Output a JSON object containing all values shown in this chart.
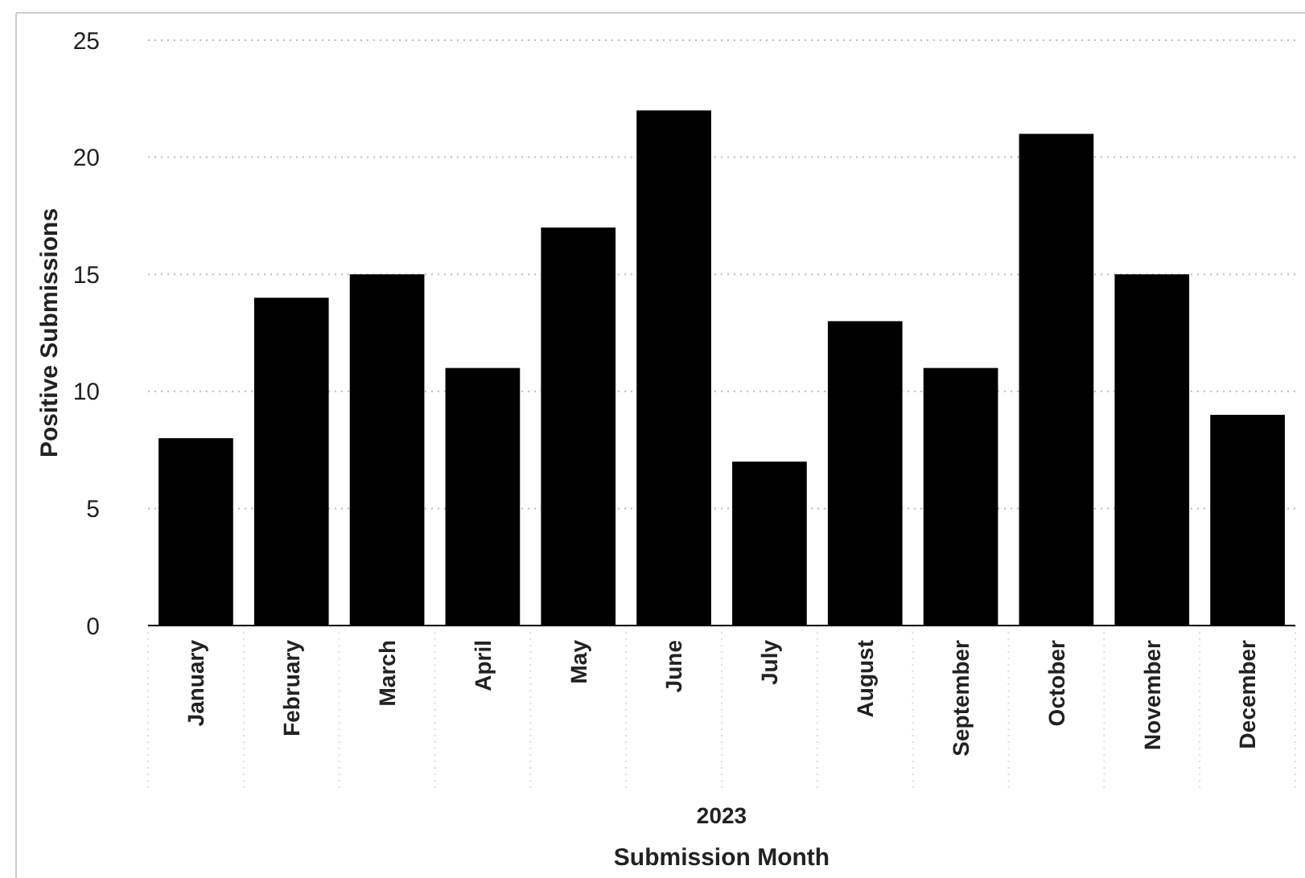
{
  "chart_data": {
    "type": "bar",
    "xlabel": "Submission Month",
    "ylabel": "Positive Submissions",
    "annotations": [
      "2023"
    ],
    "categories": [
      "January",
      "February",
      "March",
      "April",
      "May",
      "June",
      "July",
      "August",
      "September",
      "October",
      "November",
      "December"
    ],
    "values": [
      8,
      14,
      15,
      11,
      17,
      22,
      7,
      13,
      11,
      21,
      15,
      9
    ],
    "color": "#000000",
    "ylim": [
      0,
      25
    ],
    "yticks": [
      0,
      5,
      10,
      15,
      20,
      25
    ],
    "grid": "y"
  }
}
